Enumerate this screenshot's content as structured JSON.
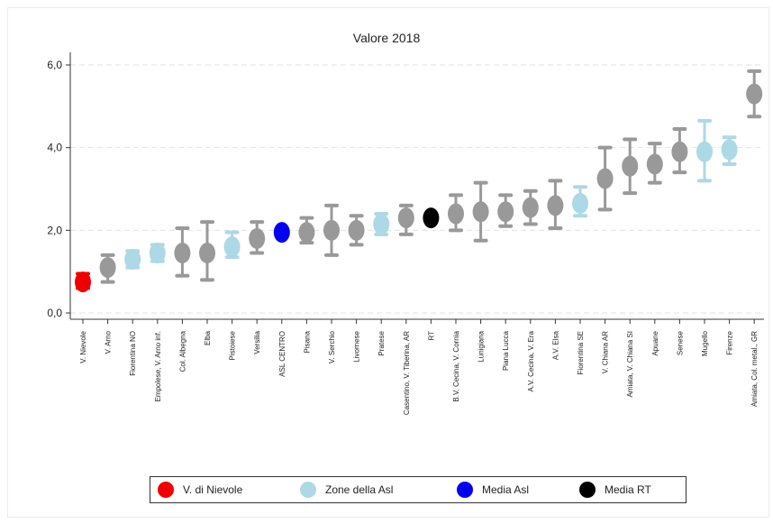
{
  "chart_data": {
    "type": "scatter",
    "title": "Valore 2018",
    "xlabel": "",
    "ylabel": "",
    "ylim": [
      0,
      6
    ],
    "yticks": [
      "0,0",
      "2,0",
      "4,0",
      "6,0"
    ],
    "grid": true,
    "legend_position": "bottom",
    "colors": {
      "V. di Nievole": "#ee0000",
      "Zone della Asl": "#add8e6",
      "Media Asl": "#0000ee",
      "Media RT": "#000000",
      "other": "#999999"
    },
    "legend": [
      {
        "label": "V. di Nievole",
        "color": "#ee0000"
      },
      {
        "label": "Zone della Asl",
        "color": "#add8e6"
      },
      {
        "label": "Media Asl",
        "color": "#0000ee"
      },
      {
        "label": "Media RT",
        "color": "#000000"
      }
    ],
    "points": [
      {
        "label": "V. Nievole",
        "value": 0.75,
        "low": 0.6,
        "high": 0.95,
        "group": "V. di Nievole"
      },
      {
        "label": "V. Arno",
        "value": 1.1,
        "low": 0.75,
        "high": 1.4,
        "group": "other"
      },
      {
        "label": "Fiorentina NO",
        "value": 1.3,
        "low": 1.1,
        "high": 1.5,
        "group": "Zone della Asl"
      },
      {
        "label": "Empolese, V. Arno inf.",
        "value": 1.45,
        "low": 1.25,
        "high": 1.65,
        "group": "Zone della Asl"
      },
      {
        "label": "Col. Albegna",
        "value": 1.45,
        "low": 0.9,
        "high": 2.05,
        "group": "other"
      },
      {
        "label": "Elba",
        "value": 1.45,
        "low": 0.8,
        "high": 2.2,
        "group": "other"
      },
      {
        "label": "Pistoiese",
        "value": 1.6,
        "low": 1.35,
        "high": 1.95,
        "group": "Zone della Asl"
      },
      {
        "label": "Versilia",
        "value": 1.8,
        "low": 1.45,
        "high": 2.2,
        "group": "other"
      },
      {
        "label": "ASL CENTRO",
        "value": 1.95,
        "low": 1.95,
        "high": 1.95,
        "group": "Media Asl"
      },
      {
        "label": "Pisana",
        "value": 1.95,
        "low": 1.7,
        "high": 2.3,
        "group": "other"
      },
      {
        "label": "V. Serchio",
        "value": 2.0,
        "low": 1.4,
        "high": 2.6,
        "group": "other"
      },
      {
        "label": "Livornese",
        "value": 2.0,
        "low": 1.65,
        "high": 2.35,
        "group": "other"
      },
      {
        "label": "Pratese",
        "value": 2.15,
        "low": 1.9,
        "high": 2.4,
        "group": "Zone della Asl"
      },
      {
        "label": "Casentino, V. Tiberina, AR",
        "value": 2.3,
        "low": 1.9,
        "high": 2.6,
        "group": "other"
      },
      {
        "label": "RT",
        "value": 2.3,
        "low": 2.3,
        "high": 2.3,
        "group": "Media RT"
      },
      {
        "label": "B.V. Cecina, V. Cornia",
        "value": 2.4,
        "low": 2.0,
        "high": 2.85,
        "group": "other"
      },
      {
        "label": "Lunigiana",
        "value": 2.45,
        "low": 1.75,
        "high": 3.15,
        "group": "other"
      },
      {
        "label": "Piana Lucca",
        "value": 2.45,
        "low": 2.1,
        "high": 2.85,
        "group": "other"
      },
      {
        "label": "A.V. Cecina, V. Era",
        "value": 2.55,
        "low": 2.15,
        "high": 2.95,
        "group": "other"
      },
      {
        "label": "A.V. Elsa",
        "value": 2.6,
        "low": 2.05,
        "high": 3.2,
        "group": "other"
      },
      {
        "label": "Fiorentina SE",
        "value": 2.65,
        "low": 2.35,
        "high": 3.05,
        "group": "Zone della Asl"
      },
      {
        "label": "V. Chiana AR",
        "value": 3.25,
        "low": 2.5,
        "high": 4.0,
        "group": "other"
      },
      {
        "label": "Amiata, V. Chiana SI",
        "value": 3.55,
        "low": 2.9,
        "high": 4.2,
        "group": "other"
      },
      {
        "label": "Apuane",
        "value": 3.6,
        "low": 3.15,
        "high": 4.1,
        "group": "other"
      },
      {
        "label": "Senese",
        "value": 3.9,
        "low": 3.4,
        "high": 4.45,
        "group": "other"
      },
      {
        "label": "Mugello",
        "value": 3.9,
        "low": 3.2,
        "high": 4.65,
        "group": "Zone della Asl"
      },
      {
        "label": "Firenze",
        "value": 3.95,
        "low": 3.6,
        "high": 4.25,
        "group": "Zone della Asl"
      },
      {
        "label": "Amiata, Col. metal., GR",
        "value": 5.3,
        "low": 4.75,
        "high": 5.85,
        "group": "other"
      }
    ]
  }
}
